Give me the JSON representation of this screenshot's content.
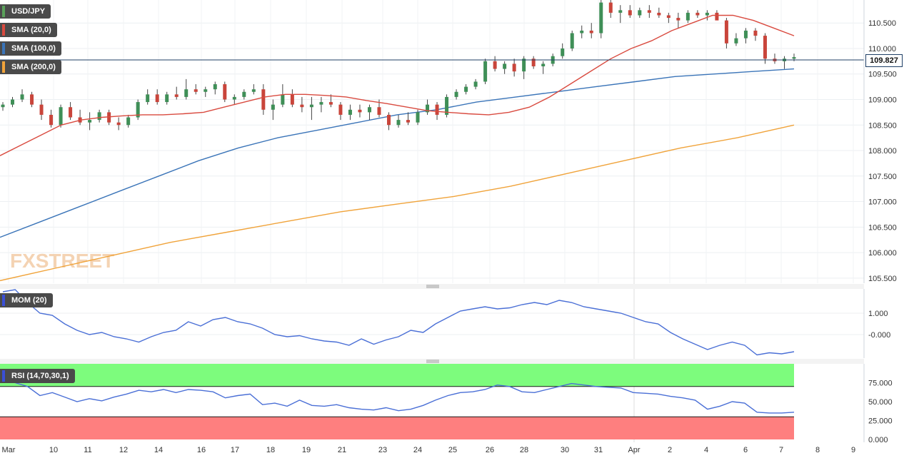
{
  "chart_data": [
    {
      "type": "candlestick",
      "title": "USD/JPY",
      "indicators": [
        {
          "name": "SMA (20,0)",
          "color": "#d94a3f"
        },
        {
          "name": "SMA (100,0)",
          "color": "#3a74b8"
        },
        {
          "name": "SMA (200,0)",
          "color": "#f0a33a"
        }
      ],
      "last_price": "109.827",
      "y_ticks": [
        "110.500",
        "110.000",
        "109.500",
        "109.000",
        "108.500",
        "108.000",
        "107.500",
        "107.000",
        "106.500",
        "106.000",
        "105.500"
      ],
      "ylim": [
        105.4,
        110.95
      ],
      "x_ticks": [
        "Mar",
        "10",
        "11",
        "12",
        "14",
        "16",
        "17",
        "18",
        "19",
        "21",
        "23",
        "24",
        "25",
        "26",
        "28",
        "30",
        "31",
        "Apr",
        "2",
        "4",
        "6",
        "7",
        "8",
        "9"
      ],
      "candles": [
        [
          108.85,
          108.95,
          108.78,
          108.9
        ],
        [
          108.9,
          109.05,
          108.85,
          109.0
        ],
        [
          109.0,
          109.2,
          108.95,
          109.1
        ],
        [
          109.1,
          109.15,
          108.85,
          108.9
        ],
        [
          108.9,
          109.0,
          108.6,
          108.7
        ],
        [
          108.7,
          108.8,
          108.45,
          108.5
        ],
        [
          108.5,
          108.9,
          108.45,
          108.85
        ],
        [
          108.85,
          108.95,
          108.6,
          108.65
        ],
        [
          108.65,
          108.8,
          108.5,
          108.55
        ],
        [
          108.55,
          108.75,
          108.4,
          108.6
        ],
        [
          108.6,
          108.8,
          108.55,
          108.75
        ],
        [
          108.75,
          108.8,
          108.5,
          108.55
        ],
        [
          108.55,
          108.65,
          108.4,
          108.5
        ],
        [
          108.5,
          108.7,
          108.45,
          108.65
        ],
        [
          108.65,
          109.0,
          108.6,
          108.95
        ],
        [
          108.95,
          109.2,
          108.9,
          109.1
        ],
        [
          109.1,
          109.2,
          108.9,
          108.95
        ],
        [
          108.95,
          109.15,
          108.9,
          109.1
        ],
        [
          109.1,
          109.25,
          109.0,
          109.05
        ],
        [
          109.05,
          109.4,
          109.0,
          109.2
        ],
        [
          109.2,
          109.3,
          109.1,
          109.15
        ],
        [
          109.15,
          109.25,
          109.05,
          109.2
        ],
        [
          109.2,
          109.35,
          109.1,
          109.3
        ],
        [
          109.3,
          109.35,
          108.95,
          109.0
        ],
        [
          109.0,
          109.1,
          108.9,
          109.05
        ],
        [
          109.05,
          109.2,
          109.0,
          109.15
        ],
        [
          109.15,
          109.3,
          109.1,
          109.2
        ],
        [
          109.2,
          109.3,
          108.7,
          108.8
        ],
        [
          108.8,
          109.0,
          108.6,
          108.9
        ],
        [
          108.9,
          109.3,
          108.85,
          109.1
        ],
        [
          109.1,
          109.2,
          108.85,
          108.9
        ],
        [
          108.9,
          109.05,
          108.75,
          108.85
        ],
        [
          108.85,
          109.05,
          108.6,
          108.9
        ],
        [
          108.9,
          109.05,
          108.75,
          108.95
        ],
        [
          108.95,
          109.1,
          108.85,
          108.9
        ],
        [
          108.9,
          108.95,
          108.6,
          108.7
        ],
        [
          108.7,
          108.9,
          108.6,
          108.8
        ],
        [
          108.8,
          108.9,
          108.65,
          108.75
        ],
        [
          108.75,
          108.9,
          108.6,
          108.85
        ],
        [
          108.85,
          109.0,
          108.65,
          108.7
        ],
        [
          108.7,
          108.75,
          108.4,
          108.5
        ],
        [
          108.5,
          108.7,
          108.45,
          108.6
        ],
        [
          108.6,
          108.75,
          108.5,
          108.55
        ],
        [
          108.55,
          108.8,
          108.5,
          108.75
        ],
        [
          108.75,
          109.0,
          108.7,
          108.9
        ],
        [
          108.9,
          108.95,
          108.6,
          108.7
        ],
        [
          108.7,
          109.1,
          108.65,
          109.05
        ],
        [
          109.05,
          109.2,
          109.0,
          109.15
        ],
        [
          109.15,
          109.3,
          109.1,
          109.25
        ],
        [
          109.25,
          109.4,
          109.2,
          109.35
        ],
        [
          109.35,
          109.8,
          109.3,
          109.75
        ],
        [
          109.75,
          109.85,
          109.55,
          109.6
        ],
        [
          109.6,
          109.75,
          109.5,
          109.7
        ],
        [
          109.7,
          109.8,
          109.45,
          109.55
        ],
        [
          109.55,
          109.85,
          109.4,
          109.8
        ],
        [
          109.8,
          109.85,
          109.6,
          109.65
        ],
        [
          109.65,
          109.75,
          109.5,
          109.7
        ],
        [
          109.7,
          109.9,
          109.65,
          109.85
        ],
        [
          109.85,
          110.1,
          109.8,
          110.0
        ],
        [
          110.0,
          110.35,
          109.95,
          110.3
        ],
        [
          110.3,
          110.45,
          110.2,
          110.35
        ],
        [
          110.35,
          110.5,
          110.2,
          110.3
        ],
        [
          110.3,
          110.95,
          110.2,
          110.9
        ],
        [
          110.9,
          110.95,
          110.6,
          110.7
        ],
        [
          110.7,
          110.85,
          110.5,
          110.75
        ],
        [
          110.75,
          110.85,
          110.6,
          110.65
        ],
        [
          110.65,
          110.8,
          110.6,
          110.75
        ],
        [
          110.75,
          110.85,
          110.6,
          110.7
        ],
        [
          110.7,
          110.8,
          110.6,
          110.65
        ],
        [
          110.65,
          110.7,
          110.5,
          110.6
        ],
        [
          110.6,
          110.7,
          110.4,
          110.55
        ],
        [
          110.55,
          110.75,
          110.5,
          110.7
        ],
        [
          110.7,
          110.75,
          110.6,
          110.65
        ],
        [
          110.65,
          110.75,
          110.55,
          110.7
        ],
        [
          110.7,
          110.75,
          110.6,
          110.55
        ],
        [
          110.55,
          110.6,
          110.0,
          110.1
        ],
        [
          110.1,
          110.3,
          110.05,
          110.2
        ],
        [
          110.2,
          110.4,
          110.1,
          110.35
        ],
        [
          110.35,
          110.4,
          110.15,
          110.25
        ],
        [
          110.25,
          110.3,
          109.7,
          109.8
        ],
        [
          109.8,
          109.9,
          109.7,
          109.75
        ],
        [
          109.75,
          109.85,
          109.6,
          109.8
        ],
        [
          109.8,
          109.9,
          109.75,
          109.83
        ]
      ],
      "sma20": [
        107.9,
        108.1,
        108.3,
        108.5,
        108.6,
        108.65,
        108.68,
        108.7,
        108.7,
        108.72,
        108.75,
        108.85,
        108.95,
        109.05,
        109.1,
        109.1,
        109.08,
        109.05,
        108.98,
        108.92,
        108.85,
        108.78,
        108.75,
        108.72,
        108.7,
        108.75,
        108.85,
        109.05,
        109.3,
        109.55,
        109.8,
        110.0,
        110.15,
        110.35,
        110.5,
        110.65,
        110.65,
        110.55,
        110.4,
        110.25
      ],
      "sma100": [
        106.3,
        106.6,
        106.9,
        107.2,
        107.5,
        107.8,
        108.05,
        108.25,
        108.4,
        108.55,
        108.7,
        108.8,
        108.95,
        109.05,
        109.15,
        109.25,
        109.35,
        109.45,
        109.5,
        109.55,
        109.6
      ],
      "sma200": [
        105.45,
        105.7,
        105.95,
        106.2,
        106.4,
        106.6,
        106.8,
        106.95,
        107.1,
        107.3,
        107.55,
        107.8,
        108.05,
        108.25,
        108.5
      ]
    },
    {
      "type": "line",
      "title": "MOM (20)",
      "y_ticks": [
        "1.000",
        "-0.000"
      ],
      "ylim": [
        -1.1,
        2.1
      ],
      "values": [
        2.0,
        2.1,
        1.5,
        1.0,
        0.9,
        0.5,
        0.2,
        0.0,
        0.1,
        -0.1,
        -0.2,
        -0.35,
        -0.1,
        0.1,
        0.2,
        0.6,
        0.4,
        0.7,
        0.8,
        0.6,
        0.5,
        0.3,
        0.0,
        -0.1,
        -0.05,
        -0.2,
        -0.3,
        -0.35,
        -0.5,
        -0.2,
        -0.45,
        -0.25,
        -0.1,
        0.2,
        0.1,
        0.5,
        0.8,
        1.1,
        1.2,
        1.3,
        1.2,
        1.25,
        1.4,
        1.5,
        1.4,
        1.6,
        1.5,
        1.3,
        1.2,
        1.1,
        1.0,
        0.8,
        0.6,
        0.5,
        0.1,
        -0.2,
        -0.45,
        -0.7,
        -0.5,
        -0.35,
        -0.5,
        -0.95,
        -0.85,
        -0.9,
        -0.8
      ],
      "series_color": "#4a6fd6"
    },
    {
      "type": "line",
      "title": "RSI (14,70,30,1)",
      "y_ticks": [
        "75.000",
        "50.000",
        "25.000",
        "0.000"
      ],
      "ylim": [
        0,
        100
      ],
      "overbought": 70,
      "oversold": 30,
      "values": [
        80,
        75,
        70,
        58,
        62,
        56,
        50,
        54,
        51,
        56,
        60,
        65,
        63,
        66,
        62,
        66,
        65,
        63,
        55,
        58,
        60,
        46,
        48,
        44,
        52,
        45,
        44,
        46,
        42,
        40,
        39,
        42,
        38,
        40,
        45,
        52,
        58,
        62,
        63,
        66,
        72,
        70,
        63,
        62,
        66,
        70,
        74,
        72,
        70,
        69,
        68,
        62,
        61,
        60,
        57,
        55,
        52,
        40,
        44,
        50,
        48,
        36,
        35,
        35,
        36
      ],
      "series_color": "#4a6fd6"
    }
  ],
  "watermark": "FXSTREET"
}
